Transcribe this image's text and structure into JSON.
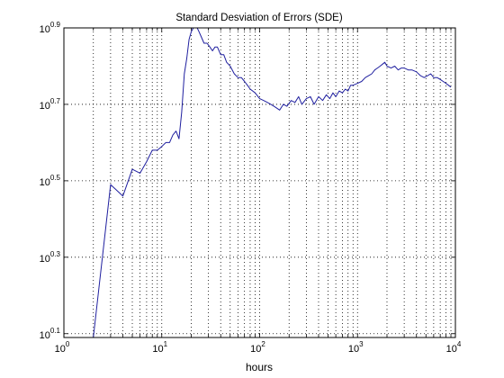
{
  "chart_data": {
    "type": "line",
    "title": "Standard Desviation of Errors (SDE)",
    "xlabel": "hours",
    "ylabel": "",
    "x_scale": "log",
    "y_scale": "log",
    "xlim": [
      1,
      10000
    ],
    "ylim_log10": [
      0.09,
      0.9
    ],
    "grid": true,
    "x_ticks": [
      {
        "base": "10",
        "exp": "0",
        "value": 1
      },
      {
        "base": "10",
        "exp": "1",
        "value": 10
      },
      {
        "base": "10",
        "exp": "2",
        "value": 100
      },
      {
        "base": "10",
        "exp": "3",
        "value": 1000
      },
      {
        "base": "10",
        "exp": "4",
        "value": 10000
      }
    ],
    "y_ticks": [
      {
        "base": "10",
        "exp": "0.1",
        "log": 0.1
      },
      {
        "base": "10",
        "exp": "0.3",
        "log": 0.3
      },
      {
        "base": "10",
        "exp": "0.5",
        "log": 0.5
      },
      {
        "base": "10",
        "exp": "0.7",
        "log": 0.7
      },
      {
        "base": "10",
        "exp": "0.9",
        "log": 0.9
      }
    ],
    "series": [
      {
        "color": "#1f1f9f",
        "x": [
          2,
          3,
          4,
          5,
          6,
          7,
          8,
          9,
          10,
          11,
          12,
          13,
          14,
          15,
          16,
          17,
          18,
          19,
          20,
          21,
          22,
          23,
          24,
          25,
          27,
          29,
          31,
          33,
          35,
          37,
          40,
          43,
          46,
          50,
          55,
          60,
          65,
          70,
          75,
          80,
          90,
          100,
          110,
          120,
          130,
          140,
          150,
          160,
          175,
          190,
          210,
          230,
          250,
          270,
          300,
          330,
          360,
          400,
          440,
          480,
          520,
          560,
          600,
          650,
          700,
          750,
          800,
          850,
          900,
          1000,
          1100,
          1200,
          1300,
          1400,
          1500,
          1600,
          1700,
          1800,
          1900,
          2000,
          2200,
          2400,
          2600,
          2800,
          3000,
          3300,
          3600,
          4000,
          4400,
          4800,
          5200,
          5600,
          6000,
          6500,
          7000,
          7500,
          8000,
          8500,
          9000
        ],
        "y_log10": [
          0.09,
          0.49,
          0.46,
          0.53,
          0.52,
          0.55,
          0.58,
          0.58,
          0.59,
          0.6,
          0.6,
          0.62,
          0.63,
          0.61,
          0.68,
          0.78,
          0.82,
          0.87,
          0.89,
          0.9,
          0.9,
          0.9,
          0.89,
          0.88,
          0.86,
          0.86,
          0.85,
          0.84,
          0.85,
          0.85,
          0.83,
          0.83,
          0.81,
          0.8,
          0.78,
          0.77,
          0.77,
          0.76,
          0.75,
          0.74,
          0.73,
          0.715,
          0.71,
          0.705,
          0.7,
          0.695,
          0.69,
          0.685,
          0.7,
          0.695,
          0.71,
          0.705,
          0.72,
          0.7,
          0.715,
          0.72,
          0.7,
          0.72,
          0.71,
          0.725,
          0.715,
          0.73,
          0.72,
          0.735,
          0.73,
          0.74,
          0.735,
          0.75,
          0.75,
          0.755,
          0.76,
          0.77,
          0.775,
          0.78,
          0.79,
          0.795,
          0.8,
          0.805,
          0.81,
          0.8,
          0.795,
          0.8,
          0.79,
          0.795,
          0.795,
          0.79,
          0.79,
          0.785,
          0.775,
          0.77,
          0.775,
          0.78,
          0.77,
          0.77,
          0.765,
          0.76,
          0.755,
          0.75,
          0.745
        ]
      }
    ]
  }
}
